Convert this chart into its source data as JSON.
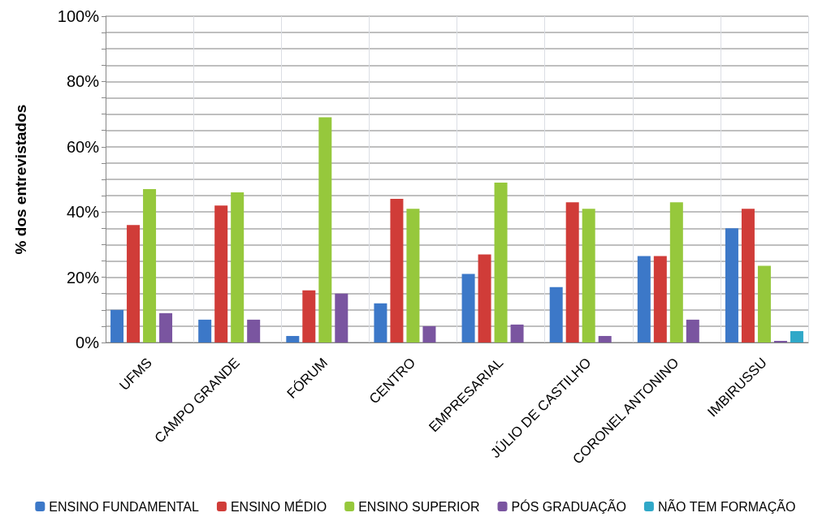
{
  "chart_data": {
    "type": "bar",
    "ylabel": "% dos entrevistados",
    "categories": [
      "UFMS",
      "CAMPO GRANDE",
      "FÓRUM",
      "CENTRO",
      "EMPRESARIAL",
      "JÚLIO DE CASTILHO",
      "CORONEL ANTONINO",
      "IMBIRUSSU"
    ],
    "series": [
      {
        "name": "ENSINO FUNDAMENTAL",
        "color": "#3c78c8",
        "values": [
          10,
          7,
          2,
          12,
          21,
          17,
          26.5,
          35
        ]
      },
      {
        "name": "ENSINO MÉDIO",
        "color": "#d03c38",
        "values": [
          36,
          42,
          16,
          44,
          27,
          43,
          26.5,
          41
        ]
      },
      {
        "name": "ENSINO SUPERIOR",
        "color": "#96c83c",
        "values": [
          47,
          46,
          69,
          41,
          49,
          41,
          43,
          23.5
        ]
      },
      {
        "name": "PÓS GRADUAÇÃO",
        "color": "#7a55a0",
        "values": [
          9,
          7,
          15,
          5,
          5.5,
          2,
          7,
          0.5
        ]
      },
      {
        "name": "NÃO TEM FORMAÇÃO",
        "color": "#30a8c8",
        "values": [
          0,
          0,
          0,
          0,
          0,
          0,
          0,
          3.5
        ]
      }
    ],
    "ylim": [
      0,
      100
    ],
    "yticks": [
      {
        "value": 0,
        "label": "0%"
      },
      {
        "value": 5,
        "label": null
      },
      {
        "value": 10,
        "label": null
      },
      {
        "value": 15,
        "label": null
      },
      {
        "value": 20,
        "label": "20%"
      },
      {
        "value": 25,
        "label": null
      },
      {
        "value": 30,
        "label": null
      },
      {
        "value": 35,
        "label": null
      },
      {
        "value": 40,
        "label": "40%"
      },
      {
        "value": 45,
        "label": null
      },
      {
        "value": 50,
        "label": null
      },
      {
        "value": 55,
        "label": null
      },
      {
        "value": 60,
        "label": "60%"
      },
      {
        "value": 65,
        "label": null
      },
      {
        "value": 70,
        "label": null
      },
      {
        "value": 75,
        "label": null
      },
      {
        "value": 80,
        "label": "80%"
      },
      {
        "value": 85,
        "label": null
      },
      {
        "value": 90,
        "label": null
      },
      {
        "value": 95,
        "label": null
      },
      {
        "value": 100,
        "label": "100%"
      }
    ],
    "grid": true,
    "legend": "bottom"
  }
}
